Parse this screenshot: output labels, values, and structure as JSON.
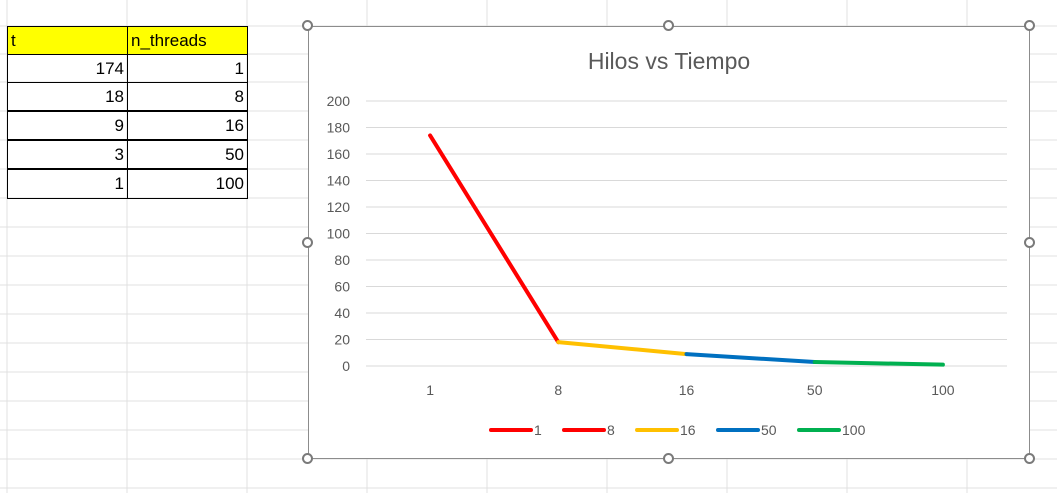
{
  "sheet": {
    "headers": [
      "t",
      "n_threads"
    ],
    "rows": [
      [
        "174",
        "1"
      ],
      [
        "18",
        "8"
      ],
      [
        "9",
        "16"
      ],
      [
        "3",
        "50"
      ],
      [
        "1",
        "100"
      ]
    ],
    "header_color": "#ffff00"
  },
  "chart_data": {
    "type": "line",
    "title": "Hilos vs Tiempo",
    "categories": [
      "1",
      "8",
      "16",
      "50",
      "100"
    ],
    "values": [
      174,
      18,
      9,
      3,
      1
    ],
    "ylim": [
      0,
      200
    ],
    "yticks": [
      0,
      20,
      40,
      60,
      80,
      100,
      120,
      140,
      160,
      180,
      200
    ],
    "grid": true,
    "legend_position": "bottom",
    "segment_colors": [
      "#ff0000",
      "#ff0000",
      "#ffc000",
      "#0070c0",
      "#00b050"
    ],
    "legend": [
      {
        "name": "1",
        "color": "#ff0000"
      },
      {
        "name": "8",
        "color": "#ff0000"
      },
      {
        "name": "16",
        "color": "#ffc000"
      },
      {
        "name": "50",
        "color": "#0070c0"
      },
      {
        "name": "100",
        "color": "#00b050"
      }
    ]
  }
}
